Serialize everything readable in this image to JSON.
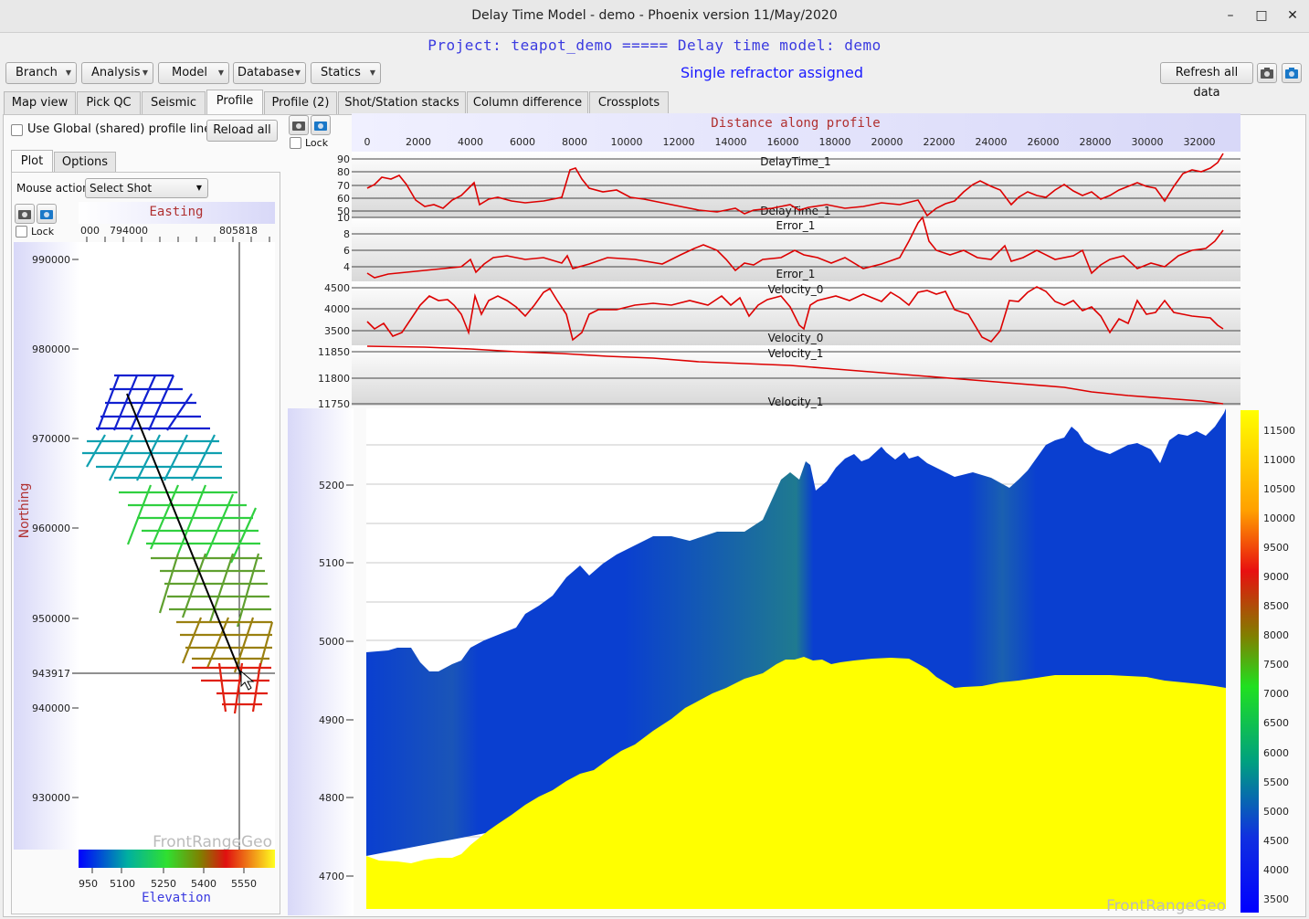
{
  "window": {
    "title": "Delay Time Model - demo - Phoenix version 11/May/2020",
    "minimize": "–",
    "maximize": "□",
    "close": "✕"
  },
  "header": {
    "project_line": "Project: teapot_demo ===== Delay time model: demo",
    "status": "Single refractor assigned"
  },
  "toolbar": {
    "menus": [
      "Branch",
      "Analysis",
      "Model",
      "Database",
      "Statics"
    ],
    "refresh_label": "Refresh all data",
    "icons": [
      "camera-icon",
      "camera-blue-icon"
    ]
  },
  "tabs": [
    {
      "label": "Map view",
      "active": false
    },
    {
      "label": "Pick QC",
      "active": false
    },
    {
      "label": "Seismic",
      "active": false
    },
    {
      "label": "Profile",
      "active": true
    },
    {
      "label": "Profile (2)",
      "active": false
    },
    {
      "label": "Shot/Station stacks",
      "active": false
    },
    {
      "label": "Column difference",
      "active": false
    },
    {
      "label": "Crossplots",
      "active": false
    }
  ],
  "left_panel": {
    "global_profile_label": "Use Global (shared) profile line",
    "reload_label": "Reload all",
    "subtabs": [
      "Plot",
      "Options"
    ],
    "mouse_action_label": "Mouse action",
    "mouse_action_value": "Select Shot",
    "lock_label": "Lock",
    "map": {
      "x_axis_title": "Easting",
      "y_axis_title": "Northing",
      "x_ticks": [
        "000",
        "794000",
        "805818"
      ],
      "y_ticks": [
        "990000",
        "980000",
        "970000",
        "960000",
        "950000",
        "943917",
        "940000",
        "930000"
      ],
      "watermark": "FrontRangeGeo",
      "colorbar_ticks": [
        "950",
        "5100",
        "5250",
        "5400",
        "5550"
      ],
      "colorbar_title": "Elevation"
    }
  },
  "right_panel": {
    "lock_label": "Lock",
    "x_axis_title": "Distance along profile",
    "x_ticks": [
      "0",
      "2000",
      "4000",
      "6000",
      "8000",
      "10000",
      "12000",
      "14000",
      "16000",
      "18000",
      "20000",
      "22000",
      "24000",
      "26000",
      "28000",
      "30000",
      "32000"
    ],
    "tracks": [
      {
        "name": "DelayTime_1",
        "ticks": [
          "90",
          "80",
          "70",
          "60",
          "50"
        ]
      },
      {
        "name": "Error_1",
        "ticks": [
          "10",
          "8",
          "6",
          "4"
        ]
      },
      {
        "name": "Velocity_0",
        "ticks": [
          "4500",
          "4000",
          "3500"
        ]
      },
      {
        "name": "Velocity_1",
        "ticks": [
          "11850",
          "11800",
          "11750"
        ]
      }
    ],
    "section": {
      "y_ticks": [
        "5200",
        "5100",
        "5000",
        "4900",
        "4800",
        "4700"
      ],
      "watermark": "FrontRangeGeo",
      "colorbar_ticks": [
        "11500",
        "11000",
        "10500",
        "10000",
        "9500",
        "9000",
        "8500",
        "8000",
        "7500",
        "7000",
        "6500",
        "6000",
        "5500",
        "5000",
        "4500",
        "4000",
        "3500"
      ]
    }
  },
  "colors": {
    "accent_text": "#3a3ae0",
    "profile_line": "#dd0000",
    "layer_blue": "#0a3fd0",
    "refractor_yellow": "#ffff00"
  }
}
